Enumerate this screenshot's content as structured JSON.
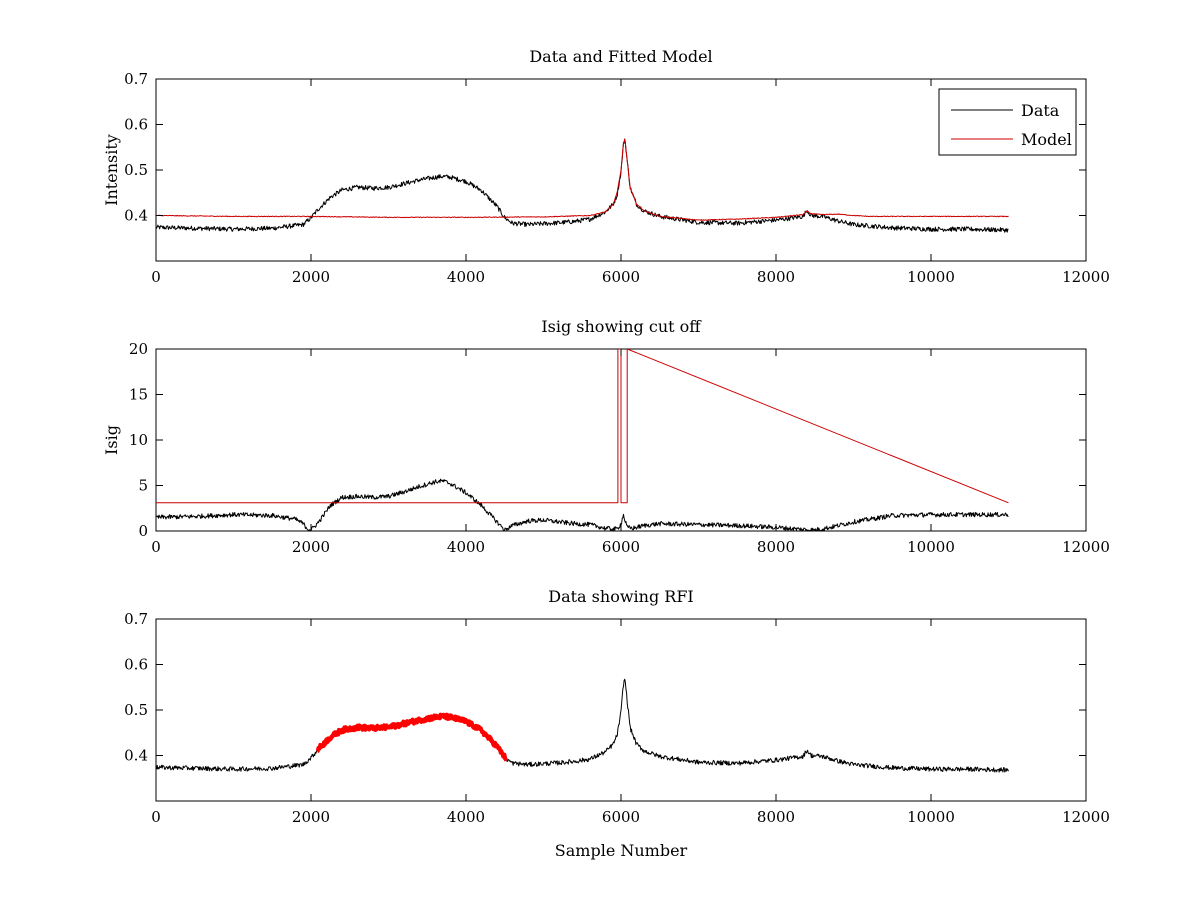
{
  "chart_data": [
    {
      "type": "line",
      "title": "Data and Fitted Model",
      "xlabel": "",
      "ylabel": "Intensity",
      "xlim": [
        0,
        12000
      ],
      "ylim": [
        0.3,
        0.7
      ],
      "xticks": [
        0,
        2000,
        4000,
        6000,
        8000,
        10000,
        12000
      ],
      "xtick_labels": [
        "0",
        "2000",
        "4000",
        "6000",
        "8000",
        "10000",
        "12000"
      ],
      "yticks": [
        0.4,
        0.5,
        0.6,
        0.7
      ],
      "ytick_labels": [
        "0.4",
        "0.5",
        "0.6",
        "0.7"
      ],
      "legend": {
        "placement": "top-right",
        "entries": [
          "Data",
          "Model"
        ]
      },
      "series": [
        {
          "name": "Data",
          "color": "#000000",
          "noise": 0.005,
          "x": [
            0,
            500,
            1000,
            1500,
            1900,
            2000,
            2100,
            2250,
            2400,
            2600,
            2800,
            3000,
            3200,
            3400,
            3600,
            3700,
            3800,
            4000,
            4200,
            4400,
            4500,
            4600,
            4800,
            5000,
            5200,
            5400,
            5600,
            5800,
            5900,
            5950,
            6000,
            6030,
            6050,
            6080,
            6120,
            6200,
            6300,
            6500,
            7000,
            7500,
            8000,
            8350,
            8400,
            8450,
            8600,
            8800,
            9000,
            9500,
            10000,
            10500,
            11000
          ],
          "y": [
            0.374,
            0.372,
            0.37,
            0.372,
            0.38,
            0.395,
            0.415,
            0.44,
            0.456,
            0.462,
            0.46,
            0.462,
            0.47,
            0.478,
            0.484,
            0.486,
            0.484,
            0.475,
            0.455,
            0.42,
            0.395,
            0.383,
            0.38,
            0.382,
            0.384,
            0.387,
            0.392,
            0.408,
            0.425,
            0.445,
            0.495,
            0.555,
            0.57,
            0.52,
            0.46,
            0.425,
            0.41,
            0.398,
            0.385,
            0.383,
            0.39,
            0.398,
            0.412,
            0.4,
            0.398,
            0.388,
            0.38,
            0.373,
            0.37,
            0.37,
            0.368
          ]
        },
        {
          "name": "Model",
          "color": "#cc0000",
          "noise": 0.0008,
          "x": [
            0,
            1000,
            2000,
            3000,
            4000,
            5000,
            5600,
            5800,
            5900,
            5950,
            6000,
            6030,
            6050,
            6080,
            6120,
            6200,
            6300,
            6500,
            7000,
            7500,
            8000,
            8350,
            8400,
            8450,
            8600,
            8800,
            9000,
            9200,
            9500,
            10000,
            11000
          ],
          "y": [
            0.4,
            0.398,
            0.398,
            0.396,
            0.396,
            0.397,
            0.4,
            0.408,
            0.425,
            0.45,
            0.5,
            0.555,
            0.57,
            0.52,
            0.46,
            0.425,
            0.41,
            0.398,
            0.39,
            0.392,
            0.396,
            0.402,
            0.41,
            0.404,
            0.402,
            0.403,
            0.4,
            0.398,
            0.398,
            0.398,
            0.398
          ]
        }
      ]
    },
    {
      "type": "line",
      "title": "Isig showing cut off",
      "xlabel": "",
      "ylabel": "Isig",
      "xlim": [
        0,
        12000
      ],
      "ylim": [
        0,
        20
      ],
      "xticks": [
        0,
        2000,
        4000,
        6000,
        8000,
        10000,
        12000
      ],
      "xtick_labels": [
        "0",
        "2000",
        "4000",
        "6000",
        "8000",
        "10000",
        "12000"
      ],
      "yticks": [
        0,
        5,
        10,
        15,
        20
      ],
      "ytick_labels": [
        "0",
        "5",
        "10",
        "15",
        "20"
      ],
      "series": [
        {
          "color": "#000000",
          "noise": 0.25,
          "x": [
            0,
            500,
            1000,
            1500,
            1800,
            1900,
            1950,
            2000,
            2100,
            2250,
            2400,
            2600,
            2800,
            3000,
            3200,
            3400,
            3600,
            3700,
            3800,
            4000,
            4200,
            4400,
            4500,
            4600,
            4800,
            5000,
            5200,
            5400,
            5600,
            5800,
            5950,
            6000,
            6030,
            6050,
            6080,
            6150,
            6300,
            6500,
            7000,
            7500,
            8000,
            8300,
            8500,
            8700,
            9000,
            9500,
            10000,
            10500,
            11000
          ],
          "y": [
            1.5,
            1.6,
            1.8,
            1.7,
            1.3,
            0.8,
            0.3,
            0.1,
            1.0,
            2.8,
            3.7,
            3.8,
            3.7,
            3.8,
            4.3,
            4.9,
            5.4,
            5.5,
            5.2,
            4.2,
            2.8,
            1.0,
            0.1,
            0.6,
            1.1,
            1.2,
            1.0,
            0.8,
            0.7,
            0.3,
            0.2,
            0.8,
            1.8,
            1.2,
            0.4,
            0.3,
            0.6,
            0.8,
            0.7,
            0.6,
            0.4,
            0.2,
            0.1,
            0.4,
            1.0,
            1.7,
            1.8,
            1.8,
            1.8
          ]
        },
        {
          "color": "#cc0000",
          "noise": 0,
          "x": [
            0,
            5960,
            5960,
            6000,
            6000,
            6080,
            6080,
            11000
          ],
          "y": [
            3.1,
            3.1,
            20,
            20,
            3.1,
            3.1,
            20,
            3.1
          ]
        }
      ]
    },
    {
      "type": "line",
      "title": "Data showing RFI",
      "xlabel": "Sample Number",
      "ylabel": "",
      "xlim": [
        0,
        12000
      ],
      "ylim": [
        0.3,
        0.7
      ],
      "xticks": [
        0,
        2000,
        4000,
        6000,
        8000,
        10000,
        12000
      ],
      "xtick_labels": [
        "0",
        "2000",
        "4000",
        "6000",
        "8000",
        "10000",
        "12000"
      ],
      "yticks": [
        0.4,
        0.5,
        0.6,
        0.7
      ],
      "ytick_labels": [
        "0.4",
        "0.5",
        "0.6",
        "0.7"
      ],
      "series": [
        {
          "color": "#000000",
          "noise": 0.005,
          "x": [
            0,
            500,
            1000,
            1500,
            1900,
            2000,
            2100,
            2250,
            2400,
            2600,
            2800,
            3000,
            3200,
            3400,
            3600,
            3700,
            3800,
            4000,
            4200,
            4400,
            4500,
            4600,
            4800,
            5000,
            5200,
            5400,
            5600,
            5800,
            5900,
            5950,
            6000,
            6030,
            6050,
            6080,
            6120,
            6200,
            6300,
            6500,
            7000,
            7500,
            8000,
            8350,
            8400,
            8450,
            8600,
            8800,
            9000,
            9500,
            10000,
            10500,
            11000
          ],
          "y": [
            0.374,
            0.372,
            0.37,
            0.372,
            0.38,
            0.395,
            0.415,
            0.44,
            0.456,
            0.462,
            0.46,
            0.462,
            0.47,
            0.478,
            0.484,
            0.486,
            0.484,
            0.475,
            0.455,
            0.42,
            0.395,
            0.383,
            0.38,
            0.382,
            0.384,
            0.387,
            0.392,
            0.408,
            0.425,
            0.445,
            0.495,
            0.555,
            0.57,
            0.52,
            0.46,
            0.425,
            0.41,
            0.398,
            0.385,
            0.383,
            0.39,
            0.398,
            0.412,
            0.4,
            0.398,
            0.388,
            0.38,
            0.373,
            0.37,
            0.37,
            0.368
          ]
        },
        {
          "color": "#ff0000",
          "noise": 0.005,
          "thick": true,
          "x": [
            2080,
            2250,
            2400,
            2600,
            2800,
            3000,
            3200,
            3400,
            3600,
            3700,
            3800,
            4000,
            4200,
            4400,
            4520
          ],
          "y": [
            0.412,
            0.44,
            0.456,
            0.462,
            0.46,
            0.462,
            0.47,
            0.478,
            0.484,
            0.486,
            0.484,
            0.475,
            0.455,
            0.42,
            0.392
          ]
        }
      ]
    }
  ]
}
